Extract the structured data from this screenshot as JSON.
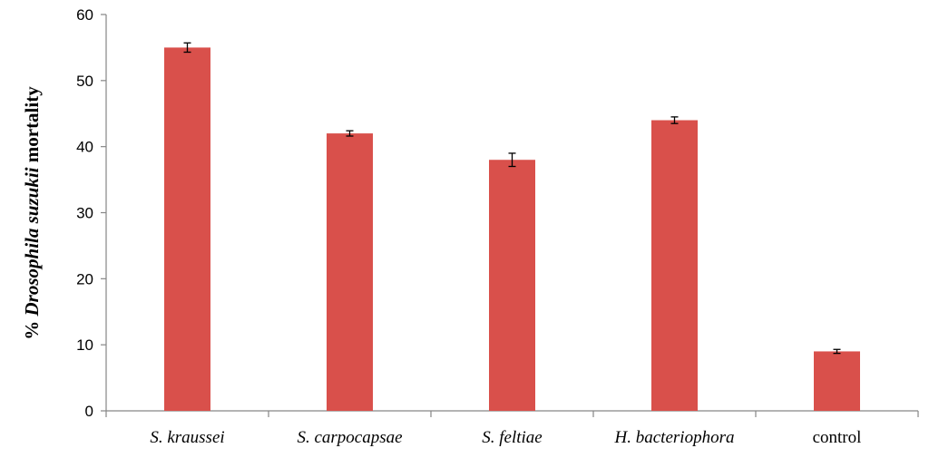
{
  "chart_data": {
    "type": "bar",
    "categories": [
      "S. kraussei",
      "S. carpocapsae",
      "S. feltiae",
      "H. bacteriophora",
      "control"
    ],
    "italic_categories": [
      true,
      true,
      true,
      true,
      false
    ],
    "values": [
      55,
      42,
      38,
      44,
      9
    ],
    "errors": [
      0.7,
      0.4,
      1.0,
      0.5,
      0.3
    ],
    "title": "",
    "xlabel": "",
    "ylabel_parts": [
      "% ",
      "Drosophila suzukii",
      " mortality"
    ],
    "ylim": [
      0,
      60
    ],
    "yticks": [
      0,
      10,
      20,
      30,
      40,
      50,
      60
    ],
    "bar_color": "#d9504b",
    "grid": false,
    "legend": "none"
  }
}
